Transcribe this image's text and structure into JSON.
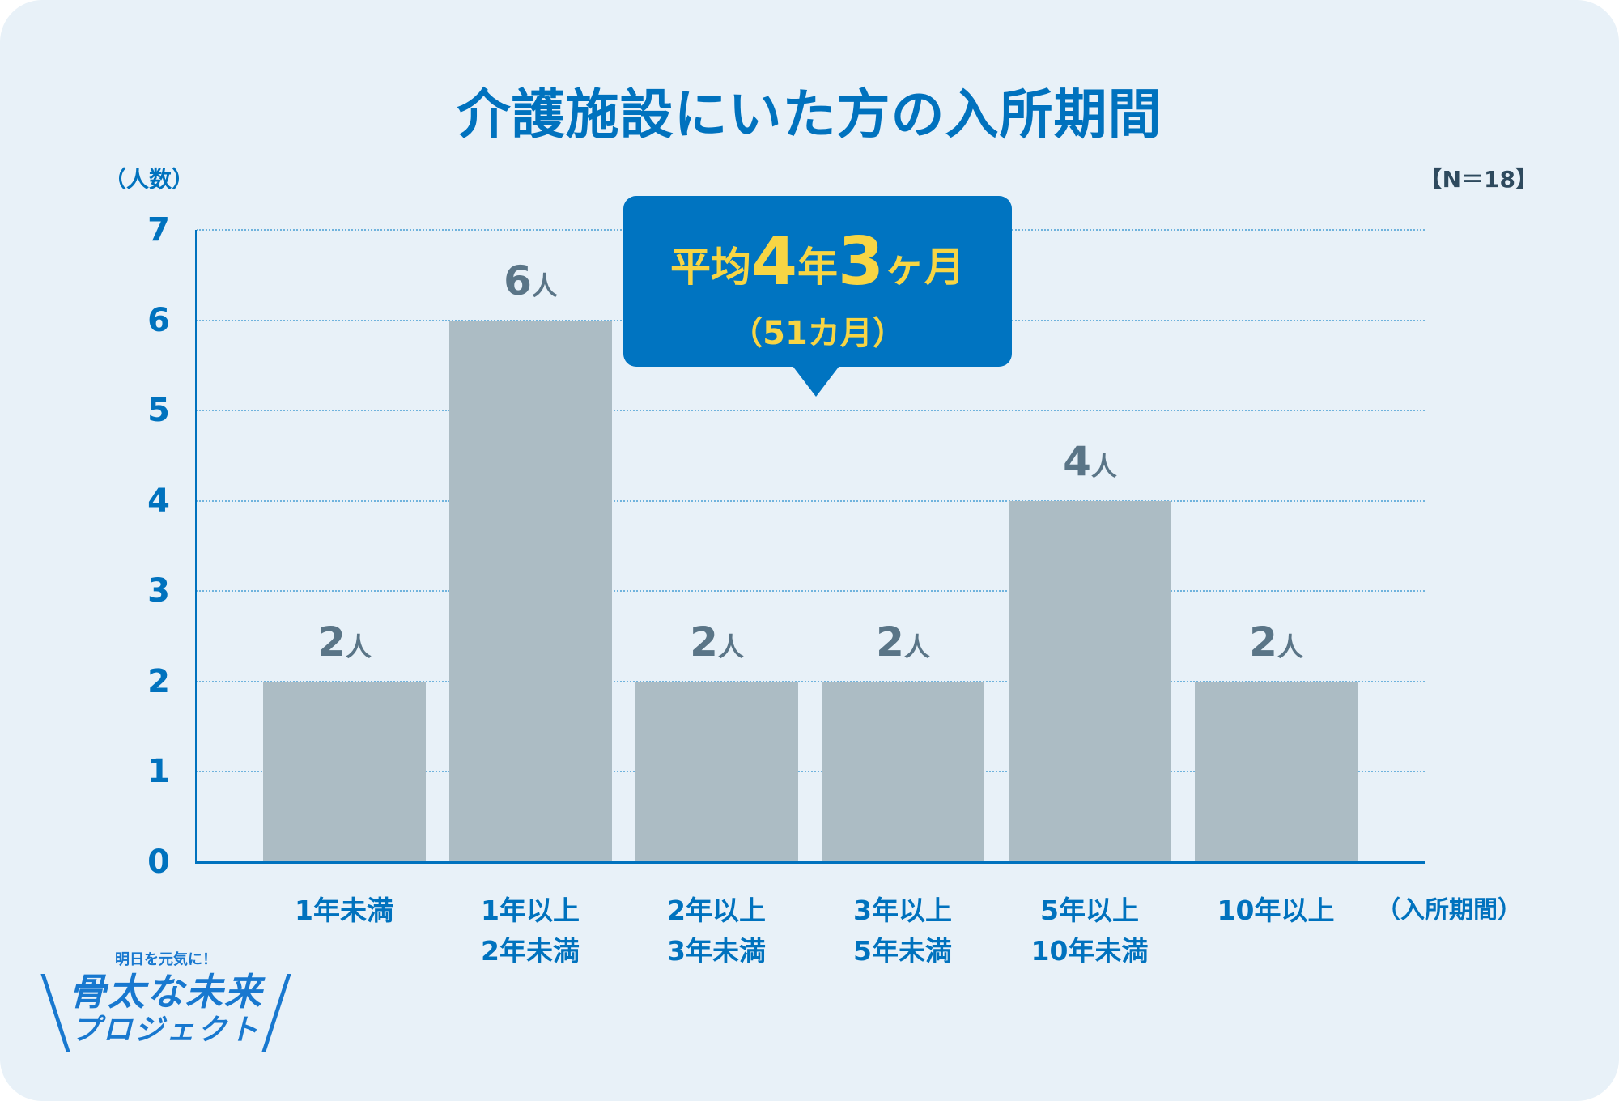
{
  "title": "介護施設にいた方の入所期間",
  "y_axis_label": "（人数）",
  "sample_size": "【N＝18】",
  "x_axis_label": "（入所期間）",
  "y_ticks": [
    "0",
    "1",
    "2",
    "3",
    "4",
    "5",
    "6",
    "7"
  ],
  "bars": [
    {
      "label_line1": "1年未満",
      "label_line2": "",
      "value": 2,
      "num": "2",
      "unit": "人"
    },
    {
      "label_line1": "1年以上",
      "label_line2": "2年未満",
      "value": 6,
      "num": "6",
      "unit": "人"
    },
    {
      "label_line1": "2年以上",
      "label_line2": "3年未満",
      "value": 2,
      "num": "2",
      "unit": "人"
    },
    {
      "label_line1": "3年以上",
      "label_line2": "5年未満",
      "value": 2,
      "num": "2",
      "unit": "人"
    },
    {
      "label_line1": "5年以上",
      "label_line2": "10年未満",
      "value": 4,
      "num": "4",
      "unit": "人"
    },
    {
      "label_line1": "10年以上",
      "label_line2": "",
      "value": 2,
      "num": "2",
      "unit": "人"
    }
  ],
  "callout": {
    "prefix": "平均",
    "years": "4",
    "year_unit": "年",
    "months": "3",
    "month_unit": "ヶ月",
    "sub": "（51カ月）"
  },
  "logo": {
    "tagline": "明日を元気に！",
    "name": "骨太な未来",
    "sub": "プロジェクト"
  },
  "colors": {
    "background": "#E8F1F8",
    "accent_blue": "#0072BE",
    "bar": "#ACBCC4",
    "bar_label": "#5A7587",
    "callout_bg": "#0074C1",
    "callout_text": "#F7D544",
    "grid": "#6FB3DD"
  },
  "chart_data": {
    "type": "bar",
    "title": "介護施設にいた方の入所期間",
    "categories": [
      "1年未満",
      "1年以上2年未満",
      "2年以上3年未満",
      "3年以上5年未満",
      "5年以上10年未満",
      "10年以上"
    ],
    "values": [
      2,
      6,
      2,
      2,
      4,
      2
    ],
    "xlabel": "（入所期間）",
    "ylabel": "（人数）",
    "ylim": [
      0,
      7
    ],
    "yticks": [
      0,
      1,
      2,
      3,
      4,
      5,
      6,
      7
    ],
    "grid": true,
    "data_labels": [
      "2人",
      "6人",
      "2人",
      "2人",
      "4人",
      "2人"
    ],
    "annotations": [
      "【N＝18】",
      "平均4年3ヶ月（51カ月）"
    ]
  }
}
